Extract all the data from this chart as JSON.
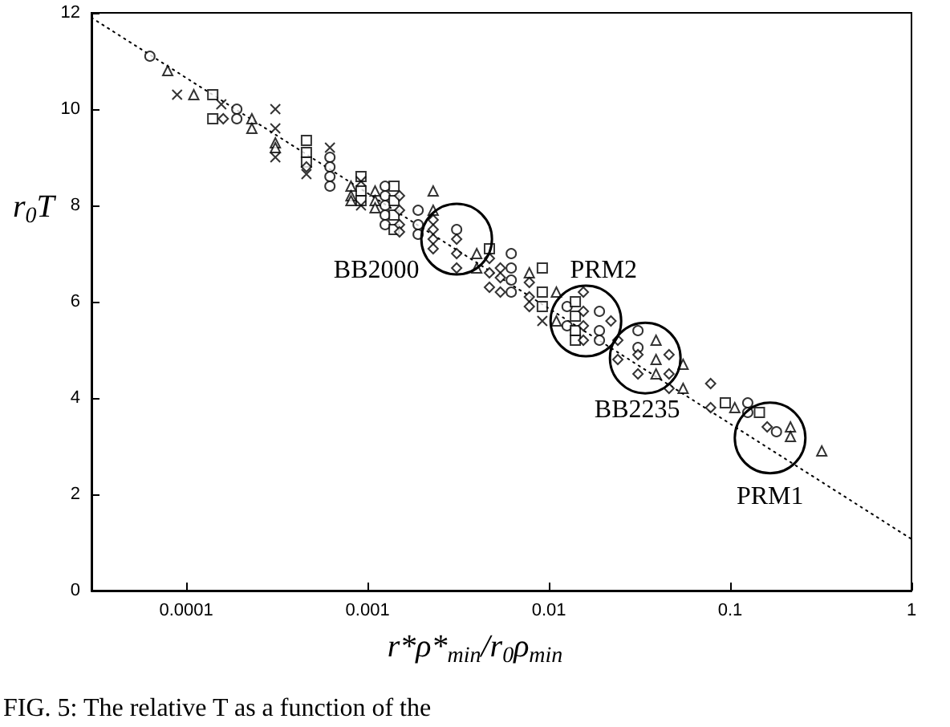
{
  "chart_data": {
    "type": "scatter",
    "xlabel": "r*ρ*$_{min}$/r$_{0}$ρ$_{min}$",
    "ylabel": "r$_{0}$T",
    "log": "x",
    "xlim": [
      3e-05,
      1
    ],
    "xticks": [
      0.0001,
      0.001,
      0.01,
      0.1,
      1
    ],
    "ylim": [
      0,
      12
    ],
    "yticks": [
      0,
      2,
      4,
      6,
      8,
      10,
      12
    ],
    "annotations": [
      {
        "text": "BB2000",
        "x": 0.0031,
        "y": 7.3
      },
      {
        "text": "PRM2",
        "x": 0.016,
        "y": 5.6
      },
      {
        "text": "BB2235",
        "x": 0.034,
        "y": 4.83
      },
      {
        "text": "PRM1",
        "x": 0.166,
        "y": 3.17
      },
      "FIG. 5: The relative T as a function of the"
    ],
    "series": [
      {
        "type": "line",
        "marker": "none",
        "line_style": "dotted",
        "color": "#000000",
        "x": [
          3e-05,
          1
        ],
        "values": [
          11.9,
          1.07
        ]
      },
      {
        "marker": "circle",
        "color": "#000000",
        "x": [
          6.3e-05,
          0.00019,
          0.00019,
          0.00062,
          0.00062,
          0.00062,
          0.00062,
          0.00125,
          0.00125,
          0.00125,
          0.00125,
          0.00125,
          0.0019,
          0.0019,
          0.0019,
          0.0031,
          0.0062,
          0.0062,
          0.0062,
          0.0062,
          0.0126,
          0.0126,
          0.019,
          0.019,
          0.019,
          0.031,
          0.031,
          0.125,
          0.125,
          0.18
        ],
        "values": [
          11.1,
          10.0,
          9.8,
          9.0,
          8.8,
          8.6,
          8.4,
          8.4,
          8.2,
          8.0,
          7.8,
          7.6,
          7.9,
          7.6,
          7.4,
          7.5,
          7.0,
          6.7,
          6.45,
          6.2,
          5.9,
          5.5,
          5.8,
          5.4,
          5.2,
          5.4,
          5.05,
          3.9,
          3.7,
          3.3
        ]
      },
      {
        "marker": "square",
        "color": "#000000",
        "x": [
          0.00014,
          0.00014,
          0.00046,
          0.00046,
          0.00046,
          0.00092,
          0.00092,
          0.00092,
          0.0014,
          0.0014,
          0.0014,
          0.0014,
          0.0047,
          0.0092,
          0.0092,
          0.0092,
          0.014,
          0.014,
          0.014,
          0.014,
          0.094,
          0.145
        ],
        "values": [
          10.3,
          9.8,
          9.35,
          9.1,
          8.9,
          8.6,
          8.3,
          8.1,
          8.4,
          8.1,
          7.8,
          7.5,
          7.1,
          6.7,
          6.2,
          5.9,
          6.0,
          5.7,
          5.4,
          5.2,
          3.9,
          3.7
        ]
      },
      {
        "marker": "triangle",
        "color": "#000000",
        "x": [
          7.9e-05,
          0.00011,
          0.00023,
          0.00023,
          0.00031,
          0.00031,
          0.00081,
          0.00081,
          0.00081,
          0.0011,
          0.0011,
          0.0011,
          0.0023,
          0.0023,
          0.004,
          0.004,
          0.0078,
          0.011,
          0.011,
          0.039,
          0.039,
          0.039,
          0.055,
          0.055,
          0.106,
          0.215,
          0.215,
          0.32
        ],
        "values": [
          10.8,
          10.3,
          9.8,
          9.6,
          9.3,
          9.2,
          8.4,
          8.2,
          8.1,
          8.3,
          8.1,
          7.95,
          8.3,
          7.9,
          7.0,
          6.7,
          6.6,
          6.2,
          5.6,
          5.2,
          4.8,
          4.5,
          4.7,
          4.2,
          3.8,
          3.4,
          3.2,
          2.9
        ]
      },
      {
        "marker": "diamond",
        "color": "#000000",
        "x": [
          0.00016,
          0.00046,
          0.0015,
          0.0015,
          0.0015,
          0.0015,
          0.0023,
          0.0023,
          0.0023,
          0.0023,
          0.0031,
          0.0031,
          0.0031,
          0.0047,
          0.0047,
          0.0047,
          0.0054,
          0.0054,
          0.0054,
          0.0078,
          0.0078,
          0.0078,
          0.0155,
          0.0155,
          0.0155,
          0.0155,
          0.022,
          0.024,
          0.024,
          0.031,
          0.031,
          0.046,
          0.046,
          0.046,
          0.078,
          0.078,
          0.16
        ],
        "values": [
          9.8,
          8.8,
          8.2,
          7.9,
          7.6,
          7.45,
          7.7,
          7.5,
          7.3,
          7.1,
          7.3,
          7.0,
          6.7,
          6.9,
          6.6,
          6.3,
          6.7,
          6.5,
          6.2,
          6.4,
          6.1,
          5.9,
          6.2,
          5.8,
          5.5,
          5.2,
          5.6,
          5.2,
          4.8,
          4.9,
          4.5,
          4.9,
          4.5,
          4.2,
          4.3,
          3.8,
          3.4
        ]
      },
      {
        "marker": "cross",
        "color": "#000000",
        "x": [
          8.9e-05,
          0.000156,
          0.00031,
          0.00031,
          0.00031,
          0.00046,
          0.00062,
          0.00092,
          0.00092,
          0.0092
        ],
        "values": [
          10.3,
          10.1,
          10.0,
          9.6,
          9.0,
          8.65,
          9.2,
          8.5,
          8.0,
          5.6
        ]
      }
    ]
  }
}
